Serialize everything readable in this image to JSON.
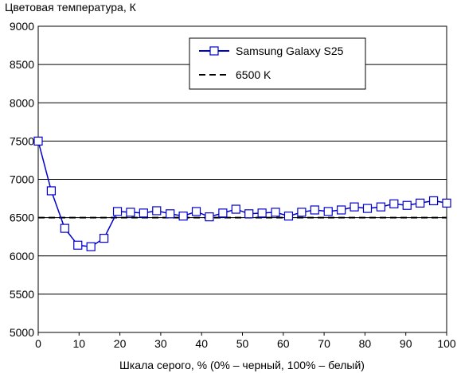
{
  "chart_data": {
    "type": "line",
    "ylabel": "Цветовая температура, К",
    "xlabel": "Шкала серого, % (0% – черный, 100% – белый)",
    "xlim": [
      0,
      100
    ],
    "ylim": [
      5000,
      9000
    ],
    "xticks": [
      "0",
      "10",
      "20",
      "30",
      "40",
      "50",
      "60",
      "70",
      "80",
      "90",
      "100"
    ],
    "yticks": [
      "5000",
      "5500",
      "6000",
      "6500",
      "7000",
      "7500",
      "8000",
      "8500",
      "9000"
    ],
    "grid": "horizontal",
    "legend_position": "top-right",
    "colors": {
      "series": "#0000cc",
      "reference": "#000000",
      "grid": "#000000"
    },
    "series": [
      {
        "name": "Samsung Galaxy S25",
        "x": [
          0,
          3.2,
          6.5,
          9.7,
          12.9,
          16.1,
          19.4,
          22.6,
          25.8,
          29.0,
          32.3,
          35.5,
          38.7,
          41.9,
          45.2,
          48.4,
          51.6,
          54.8,
          58.1,
          61.3,
          64.5,
          67.7,
          71.0,
          74.2,
          77.4,
          80.6,
          83.9,
          87.1,
          90.3,
          93.5,
          96.8,
          100
        ],
        "values": [
          7500,
          6850,
          6360,
          6140,
          6120,
          6230,
          6580,
          6570,
          6560,
          6590,
          6550,
          6520,
          6580,
          6510,
          6560,
          6610,
          6550,
          6560,
          6570,
          6520,
          6570,
          6600,
          6580,
          6600,
          6640,
          6620,
          6640,
          6680,
          6660,
          6690,
          6720,
          6690
        ]
      },
      {
        "name": "6500 K",
        "style": "dashed",
        "x": [
          0,
          100
        ],
        "values": [
          6500,
          6500
        ]
      }
    ]
  }
}
